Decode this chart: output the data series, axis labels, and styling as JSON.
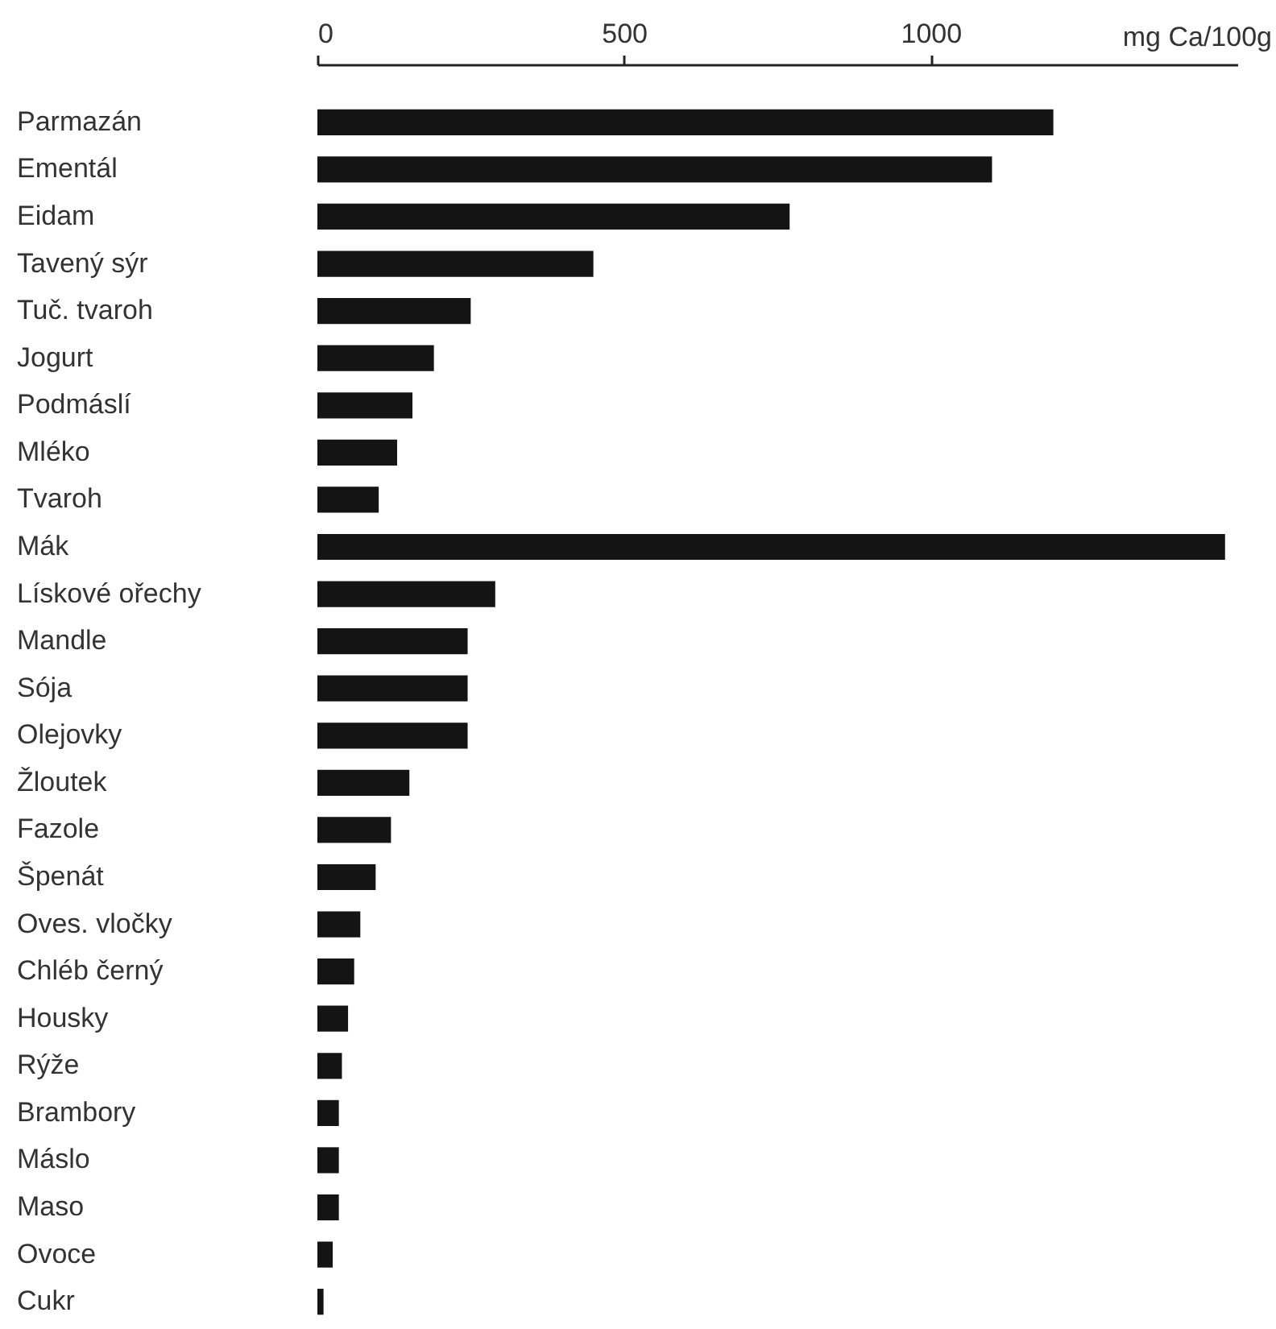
{
  "chart_data": {
    "type": "bar",
    "orientation": "horizontal",
    "xlabel": "mg Ca/100g",
    "categories": [
      "Parmazán",
      "Ementál",
      "Eidam",
      "Tavený sýr",
      "Tuč. tvaroh",
      "Jogurt",
      "Podmáslí",
      "Mléko",
      "Tvaroh",
      "Mák",
      "Lískové ořechy",
      "Mandle",
      "Sója",
      "Olejovky",
      "Žloutek",
      "Fazole",
      "Špenát",
      "Oves. vločky",
      "Chléb černý",
      "Housky",
      "Rýže",
      "Brambory",
      "Máslo",
      "Maso",
      "Ovoce",
      "Cukr"
    ],
    "values": [
      1200,
      1100,
      770,
      450,
      250,
      190,
      155,
      130,
      100,
      1480,
      290,
      245,
      245,
      245,
      150,
      120,
      95,
      70,
      60,
      50,
      40,
      35,
      35,
      35,
      25,
      10
    ],
    "color": "#141414",
    "xlim": [
      0,
      1500
    ],
    "xticks": [
      0,
      500,
      1000
    ],
    "grid": false
  }
}
